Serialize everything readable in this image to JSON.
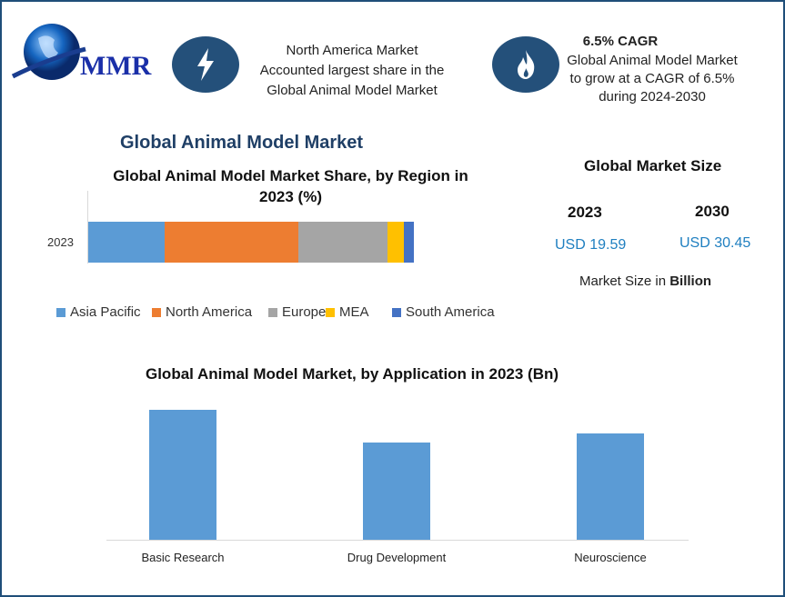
{
  "logo": {
    "text": "MMR"
  },
  "highlight1": {
    "icon": "lightning-icon",
    "text": [
      "North America Market",
      "Accounted largest share in the",
      "Global Animal Model Market"
    ]
  },
  "highlight2": {
    "icon": "flame-icon",
    "title": "6.5% CAGR",
    "text": [
      "Global Animal Model Market",
      "to grow at a CAGR of 6.5%",
      "during 2024-2030"
    ]
  },
  "main_title": "Global Animal Model Market",
  "market_size": {
    "title": "Global Market Size",
    "year1": "2023",
    "value1": "USD 19.59",
    "year2": "2030",
    "value2": "USD 30.45",
    "note_prefix": "Market Size in ",
    "note_bold": "Billion"
  },
  "colors": {
    "frame": "#1f4e79",
    "icon_bg": "#24507a",
    "value_text": "#1f7fc0"
  },
  "chart_data": [
    {
      "type": "bar",
      "orientation": "horizontal",
      "stacked": true,
      "title": "Global Animal Model Market Share, by Region in 2023 (%)",
      "title_lines": [
        "Global Animal Model Market Share, by Region in",
        "2023 (%)"
      ],
      "categories": [
        "2023"
      ],
      "xlim": [
        0,
        100
      ],
      "legend": "bottom",
      "series": [
        {
          "name": "Asia Pacific",
          "values": [
            23.5
          ],
          "color": "#5b9bd5"
        },
        {
          "name": "North America",
          "values": [
            41.1
          ],
          "color": "#ed7d31"
        },
        {
          "name": "Europe",
          "values": [
            27.4
          ],
          "color": "#a5a5a5"
        },
        {
          "name": "MEA",
          "values": [
            5.0
          ],
          "color": "#ffc000"
        },
        {
          "name": "South America",
          "values": [
            3.0
          ],
          "color": "#4472c4"
        }
      ]
    },
    {
      "type": "bar",
      "title": "Global Animal Model Market, by Application in 2023 (Bn)",
      "categories": [
        "Basic Research",
        "Drug Development",
        "Neuroscience"
      ],
      "values": [
        7.67,
        5.7,
        6.23
      ],
      "ylim": [
        0,
        8.5
      ],
      "color": "#5b9bd5"
    }
  ]
}
